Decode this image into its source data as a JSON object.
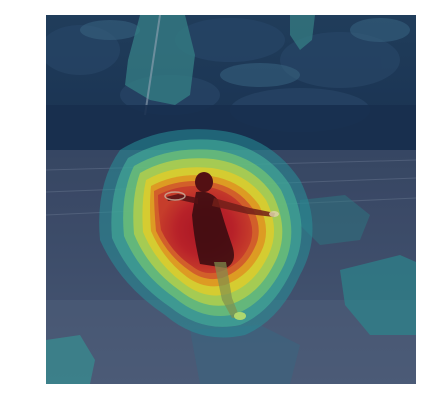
{
  "figure": {
    "kind": "attention-heatmap-overlay",
    "colormap": "jet",
    "background_color": "#ffffff"
  },
  "photo": {
    "subject": "person-throwing-frisbee",
    "scene": [
      "trees",
      "track",
      "grass-field"
    ]
  },
  "heatmap": {
    "peak_color": "#c0182c",
    "mid_colors": [
      "#e8801e",
      "#e8e020",
      "#7ad07a",
      "#3ab8b0"
    ],
    "low_color": "#1a3a64"
  }
}
